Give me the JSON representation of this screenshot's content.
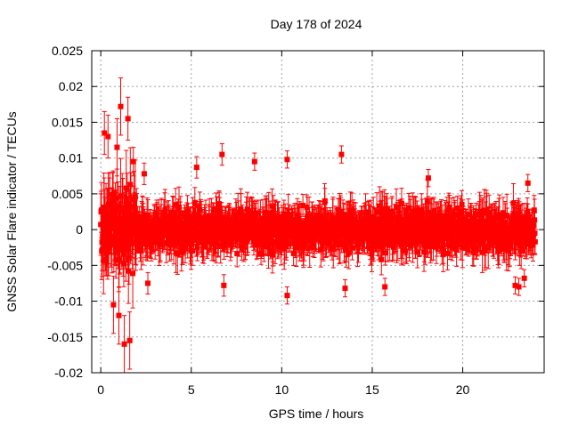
{
  "chart_data": {
    "type": "scatter",
    "title": "Day 178 of 2024",
    "xlabel": "GPS time / hours",
    "ylabel": "GNSS Solar Flare indicator / TECUs",
    "xlim": [
      -0.5,
      24.5
    ],
    "ylim": [
      -0.02,
      0.025
    ],
    "x_ticks": [
      0,
      5,
      10,
      15,
      20
    ],
    "y_ticks": [
      -0.02,
      -0.015,
      -0.01,
      -0.005,
      0,
      0.005,
      0.01,
      0.015,
      0.02,
      0.025
    ],
    "x_tick_labels": [
      "0",
      "5",
      "10",
      "15",
      "20"
    ],
    "y_tick_labels": [
      "-0.02",
      "-0.015",
      "-0.01",
      "-0.005",
      "0",
      "0.005",
      "0.01",
      "0.015",
      "0.02",
      "0.025"
    ],
    "grid": true,
    "marker": "square",
    "error_bars": true,
    "color": "#ff0000",
    "series": [
      {
        "x_range": [
          0,
          24
        ],
        "description": "dense noise band around zero, larger spread in first 2 hours",
        "band_half_width": 0.005,
        "outliers": [
          {
            "x": 0.2,
            "y": 0.0135,
            "err": 0.003
          },
          {
            "x": 0.4,
            "y": 0.013,
            "err": 0.003
          },
          {
            "x": 0.7,
            "y": -0.0105,
            "err": 0.004
          },
          {
            "x": 0.9,
            "y": 0.0115,
            "err": 0.004
          },
          {
            "x": 1.0,
            "y": -0.012,
            "err": 0.004
          },
          {
            "x": 1.1,
            "y": 0.0172,
            "err": 0.004
          },
          {
            "x": 1.3,
            "y": -0.016,
            "err": 0.004
          },
          {
            "x": 1.5,
            "y": 0.0155,
            "err": 0.003
          },
          {
            "x": 1.6,
            "y": -0.0155,
            "err": 0.004
          },
          {
            "x": 1.8,
            "y": 0.0095,
            "err": 0.002
          },
          {
            "x": 2.4,
            "y": 0.0078,
            "err": 0.0015
          },
          {
            "x": 2.6,
            "y": -0.0075,
            "err": 0.0015
          },
          {
            "x": 5.3,
            "y": 0.0087,
            "err": 0.0015
          },
          {
            "x": 6.7,
            "y": 0.0105,
            "err": 0.0015
          },
          {
            "x": 6.8,
            "y": -0.0078,
            "err": 0.0015
          },
          {
            "x": 8.5,
            "y": 0.0095,
            "err": 0.0012
          },
          {
            "x": 10.3,
            "y": 0.0098,
            "err": 0.0012
          },
          {
            "x": 10.3,
            "y": -0.0092,
            "err": 0.0012
          },
          {
            "x": 13.3,
            "y": 0.0105,
            "err": 0.0012
          },
          {
            "x": 13.5,
            "y": -0.0082,
            "err": 0.0012
          },
          {
            "x": 15.7,
            "y": -0.008,
            "err": 0.0012
          },
          {
            "x": 18.1,
            "y": 0.0072,
            "err": 0.0012
          },
          {
            "x": 22.9,
            "y": -0.0078,
            "err": 0.0012
          },
          {
            "x": 23.1,
            "y": -0.008,
            "err": 0.0012
          },
          {
            "x": 23.4,
            "y": -0.0068,
            "err": 0.0012
          },
          {
            "x": 23.6,
            "y": 0.0065,
            "err": 0.0012
          }
        ]
      }
    ]
  }
}
